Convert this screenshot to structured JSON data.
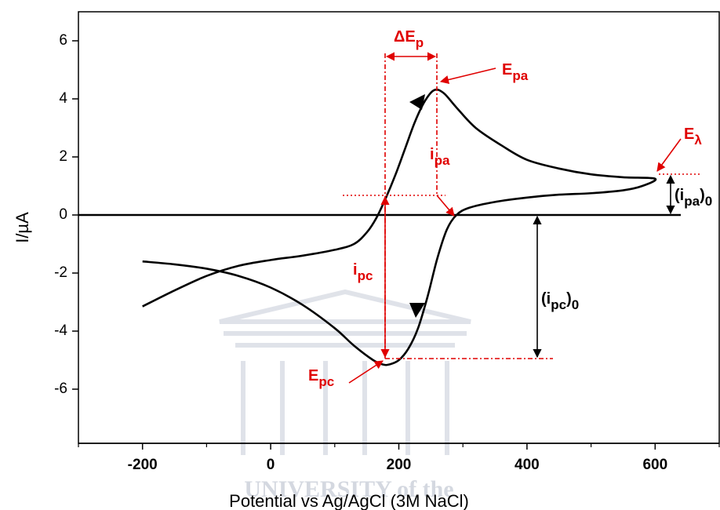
{
  "chart_data": {
    "type": "line",
    "x_label": "Potential vs Ag/AgCl (3M NaCl)",
    "y_label": "I/µA",
    "watermark": "UNIVERSITY of the",
    "xlim": [
      -300,
      700
    ],
    "ylim": [
      -8,
      7
    ],
    "xticks": [
      -200,
      0,
      200,
      400,
      600
    ],
    "xticks_minor": [
      -300,
      -100,
      100,
      300,
      500,
      700
    ],
    "yticks": [
      6,
      4,
      2,
      0,
      -2,
      -4,
      -6
    ],
    "series": [
      {
        "color": "#000000",
        "x": [
          -200,
          -150,
          -100,
          -50,
          0,
          50,
          100,
          130,
          150,
          165,
          180,
          195,
          210,
          225,
          240,
          255,
          270,
          290,
          320,
          360,
          400,
          450,
          500,
          550,
          600,
          580,
          550,
          500,
          450,
          400,
          350,
          310,
          290,
          275,
          260,
          245,
          230,
          215,
          200,
          185,
          175,
          160,
          130,
          100,
          50,
          0,
          -50,
          -100,
          -150,
          -200
        ],
        "values": [
          -3.15,
          -2.6,
          -2.1,
          -1.75,
          -1.55,
          -1.4,
          -1.2,
          -1.0,
          -0.6,
          -0.1,
          0.6,
          1.4,
          2.3,
          3.2,
          3.9,
          4.3,
          4.2,
          3.7,
          3.0,
          2.4,
          1.9,
          1.6,
          1.4,
          1.3,
          1.25,
          1.0,
          0.85,
          0.75,
          0.7,
          0.6,
          0.45,
          0.25,
          0.0,
          -0.5,
          -1.5,
          -2.8,
          -3.9,
          -4.6,
          -5.0,
          -5.15,
          -5.15,
          -5.0,
          -4.5,
          -3.9,
          -3.1,
          -2.5,
          -2.1,
          -1.85,
          -1.7,
          -1.6
        ]
      },
      {
        "color": "#000000",
        "x": [
          -300,
          640
        ],
        "values": [
          0,
          0
        ]
      }
    ],
    "annotations": [
      {
        "parts": [
          {
            "text": "ΔE"
          },
          {
            "text": "p",
            "sub": true
          }
        ]
      },
      {
        "parts": [
          {
            "text": "E"
          },
          {
            "text": "pa",
            "sub": true
          }
        ]
      },
      {
        "parts": [
          {
            "text": "i"
          },
          {
            "text": "pa",
            "sub": true
          }
        ]
      },
      {
        "parts": [
          {
            "text": "E"
          },
          {
            "text": "λ",
            "sub": true
          }
        ]
      },
      {
        "parts": [
          {
            "text": "(i"
          },
          {
            "text": "pa",
            "sub": true
          },
          {
            "text": ")"
          },
          {
            "text": "0",
            "sub": true
          }
        ]
      },
      {
        "parts": [
          {
            "text": "i"
          },
          {
            "text": "pc",
            "sub": true
          }
        ]
      },
      {
        "parts": [
          {
            "text": "(i"
          },
          {
            "text": "pc",
            "sub": true
          },
          {
            "text": ")"
          },
          {
            "text": "0",
            "sub": true
          }
        ]
      },
      {
        "parts": [
          {
            "text": "E"
          },
          {
            "text": "pc",
            "sub": true
          }
        ]
      }
    ]
  }
}
